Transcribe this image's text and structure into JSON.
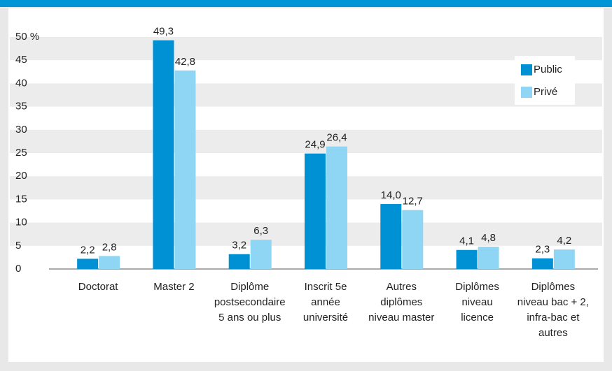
{
  "chart_data": {
    "type": "bar",
    "categories": [
      [
        "Doctorat"
      ],
      [
        "Master 2"
      ],
      [
        "Diplôme",
        "postsecondaire",
        "5 ans ou plus"
      ],
      [
        "Inscrit 5e",
        "année",
        "université"
      ],
      [
        "Autres",
        "diplômes",
        "niveau master"
      ],
      [
        "Diplômes",
        "niveau",
        "licence"
      ],
      [
        "Diplômes",
        "niveau bac + 2,",
        "infra-bac et",
        "autres"
      ]
    ],
    "series": [
      {
        "name": "Public",
        "color": "#0091d4",
        "values": [
          2.2,
          49.3,
          3.2,
          24.9,
          14.0,
          4.1,
          2.3
        ],
        "value_labels": [
          "2,2",
          "49,3",
          "3,2",
          "24,9",
          "14,0",
          "4,1",
          "2,3"
        ]
      },
      {
        "name": "Privé",
        "color": "#8fd6f4",
        "values": [
          2.8,
          42.8,
          6.3,
          26.4,
          12.7,
          4.8,
          4.2
        ],
        "value_labels": [
          "2,8",
          "42,8",
          "6,3",
          "26,4",
          "12,7",
          "4,8",
          "4,2"
        ]
      }
    ],
    "ylim": [
      0,
      50
    ],
    "yticks": [
      0,
      5,
      10,
      15,
      20,
      25,
      30,
      35,
      40,
      45,
      {
        "value": 50,
        "label": "50 %"
      }
    ],
    "grid": true,
    "legend": "upper right"
  }
}
